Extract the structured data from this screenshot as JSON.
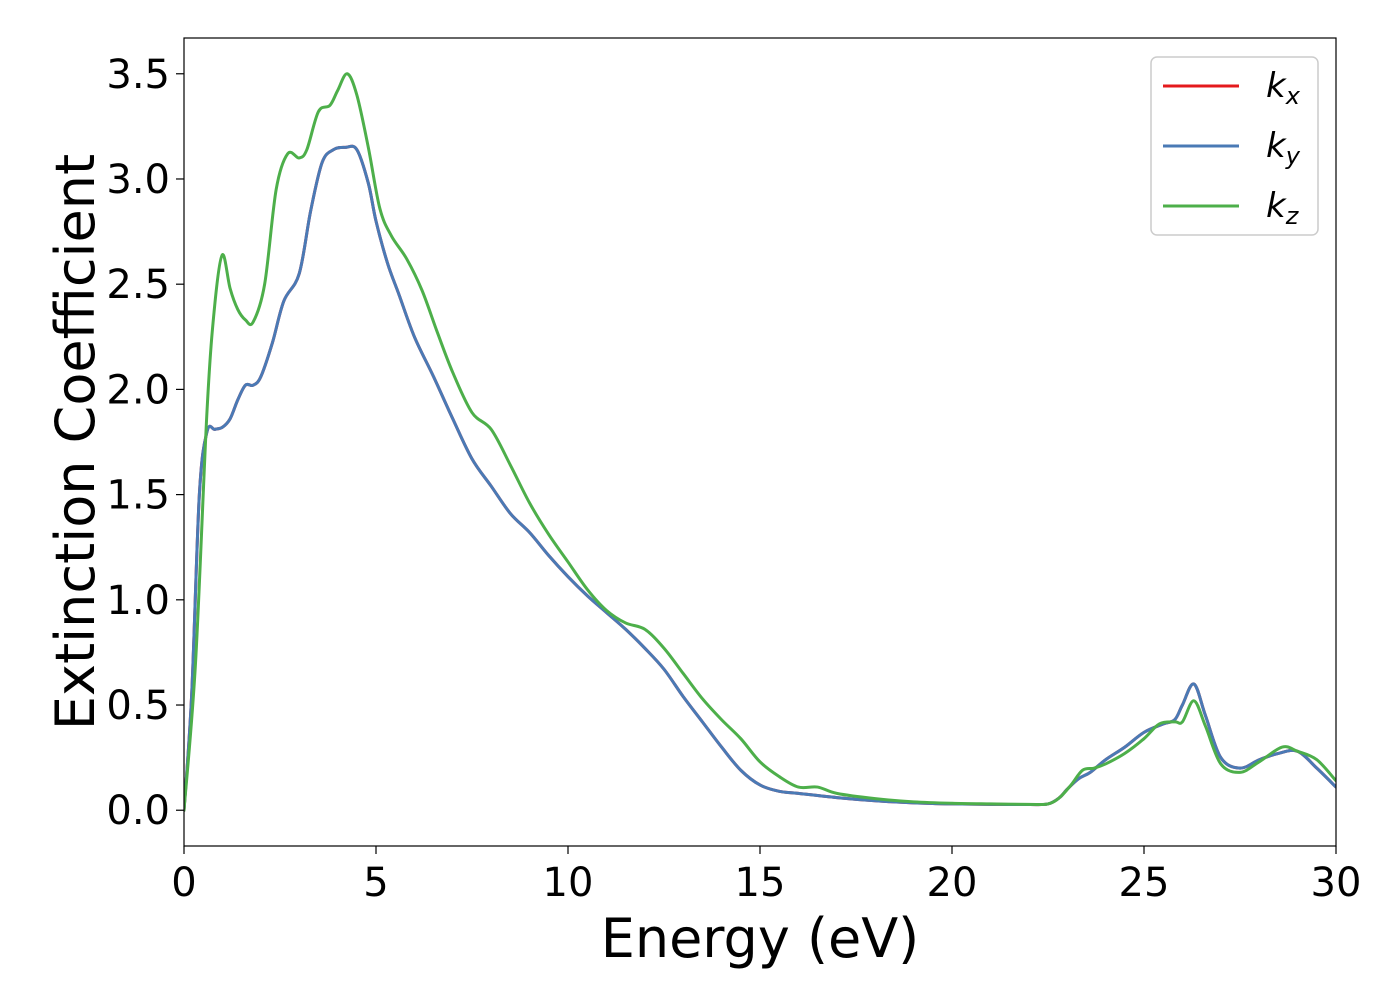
{
  "chart_data": {
    "type": "line",
    "xlabel": "Energy (eV)",
    "ylabel": "Extinction Coefficient",
    "xlim": [
      0,
      30
    ],
    "ylim": [
      -0.17,
      3.67
    ],
    "xticks": [
      0,
      5,
      10,
      15,
      20,
      25,
      30
    ],
    "xtick_labels": [
      "0",
      "5",
      "10",
      "15",
      "20",
      "25",
      "30"
    ],
    "yticks": [
      0.0,
      0.5,
      1.0,
      1.5,
      2.0,
      2.5,
      3.0,
      3.5
    ],
    "ytick_labels": [
      "0.0",
      "0.5",
      "1.0",
      "1.5",
      "2.0",
      "2.5",
      "3.0",
      "3.5"
    ],
    "grid": false,
    "legend_position": "top-right",
    "series": [
      {
        "name": "k_x",
        "label_base": "k",
        "label_sub": "x",
        "color": "#e41a1c",
        "x": [
          0,
          0.2,
          0.4,
          0.6,
          0.8,
          1.0,
          1.2,
          1.4,
          1.6,
          1.8,
          2.0,
          2.3,
          2.6,
          3.0,
          3.3,
          3.6,
          3.9,
          4.2,
          4.5,
          4.8,
          5.0,
          5.3,
          5.6,
          6.0,
          6.5,
          7.0,
          7.5,
          8.0,
          8.5,
          9.0,
          9.5,
          10.0,
          10.5,
          11.0,
          11.5,
          12.0,
          12.5,
          13.0,
          13.5,
          14.0,
          14.5,
          15.0,
          15.5,
          16.0,
          17.0,
          18.0,
          19.0,
          20.0,
          21.0,
          22.0,
          22.5,
          22.8,
          23.0,
          23.3,
          23.6,
          24.0,
          24.5,
          25.0,
          25.5,
          25.8,
          26.0,
          26.3,
          26.6,
          27.0,
          27.5,
          28.0,
          28.5,
          29.0,
          29.5,
          30.0
        ],
        "y": [
          0.0,
          0.55,
          1.5,
          1.8,
          1.81,
          1.82,
          1.86,
          1.95,
          2.02,
          2.02,
          2.06,
          2.22,
          2.42,
          2.55,
          2.85,
          3.08,
          3.14,
          3.15,
          3.14,
          2.98,
          2.8,
          2.6,
          2.45,
          2.25,
          2.06,
          1.86,
          1.67,
          1.54,
          1.41,
          1.32,
          1.21,
          1.11,
          1.02,
          0.94,
          0.86,
          0.77,
          0.67,
          0.54,
          0.42,
          0.3,
          0.19,
          0.12,
          0.09,
          0.08,
          0.06,
          0.045,
          0.035,
          0.03,
          0.028,
          0.027,
          0.03,
          0.06,
          0.1,
          0.15,
          0.18,
          0.24,
          0.3,
          0.37,
          0.41,
          0.43,
          0.5,
          0.6,
          0.45,
          0.25,
          0.2,
          0.24,
          0.27,
          0.28,
          0.2,
          0.11
        ]
      },
      {
        "name": "k_y",
        "label_base": "k",
        "label_sub": "y",
        "color": "#4a7ab5",
        "x": [
          0,
          0.2,
          0.4,
          0.6,
          0.8,
          1.0,
          1.2,
          1.4,
          1.6,
          1.8,
          2.0,
          2.3,
          2.6,
          3.0,
          3.3,
          3.6,
          3.9,
          4.2,
          4.5,
          4.8,
          5.0,
          5.3,
          5.6,
          6.0,
          6.5,
          7.0,
          7.5,
          8.0,
          8.5,
          9.0,
          9.5,
          10.0,
          10.5,
          11.0,
          11.5,
          12.0,
          12.5,
          13.0,
          13.5,
          14.0,
          14.5,
          15.0,
          15.5,
          16.0,
          17.0,
          18.0,
          19.0,
          20.0,
          21.0,
          22.0,
          22.5,
          22.8,
          23.0,
          23.3,
          23.6,
          24.0,
          24.5,
          25.0,
          25.5,
          25.8,
          26.0,
          26.3,
          26.6,
          27.0,
          27.5,
          28.0,
          28.5,
          29.0,
          29.5,
          30.0
        ],
        "y": [
          0.0,
          0.55,
          1.5,
          1.8,
          1.81,
          1.82,
          1.86,
          1.95,
          2.02,
          2.02,
          2.06,
          2.22,
          2.42,
          2.55,
          2.85,
          3.08,
          3.14,
          3.15,
          3.14,
          2.98,
          2.8,
          2.6,
          2.45,
          2.25,
          2.06,
          1.86,
          1.67,
          1.54,
          1.41,
          1.32,
          1.21,
          1.11,
          1.02,
          0.94,
          0.86,
          0.77,
          0.67,
          0.54,
          0.42,
          0.3,
          0.19,
          0.12,
          0.09,
          0.08,
          0.06,
          0.045,
          0.035,
          0.03,
          0.028,
          0.027,
          0.03,
          0.06,
          0.1,
          0.15,
          0.18,
          0.24,
          0.3,
          0.37,
          0.41,
          0.43,
          0.5,
          0.6,
          0.45,
          0.25,
          0.2,
          0.24,
          0.27,
          0.28,
          0.2,
          0.11
        ]
      },
      {
        "name": "k_z",
        "label_base": "k",
        "label_sub": "z",
        "color": "#4daf4a",
        "x": [
          0,
          0.3,
          0.6,
          0.8,
          1.0,
          1.2,
          1.4,
          1.6,
          1.8,
          2.1,
          2.4,
          2.7,
          3.0,
          3.2,
          3.5,
          3.8,
          4.0,
          4.25,
          4.5,
          4.8,
          5.1,
          5.4,
          5.8,
          6.2,
          6.6,
          7.0,
          7.5,
          8.0,
          8.5,
          9.0,
          9.5,
          10.0,
          10.5,
          11.0,
          11.5,
          12.0,
          12.5,
          13.0,
          13.5,
          14.0,
          14.5,
          15.0,
          15.5,
          16.0,
          16.5,
          17.0,
          18.0,
          19.0,
          20.0,
          21.0,
          22.0,
          22.5,
          22.8,
          23.1,
          23.4,
          23.7,
          24.0,
          24.5,
          25.0,
          25.4,
          25.8,
          26.0,
          26.3,
          26.6,
          27.0,
          27.5,
          28.0,
          28.6,
          29.0,
          29.5,
          30.0
        ],
        "y": [
          0.0,
          0.7,
          1.9,
          2.4,
          2.64,
          2.48,
          2.38,
          2.33,
          2.32,
          2.5,
          2.95,
          3.12,
          3.1,
          3.14,
          3.32,
          3.35,
          3.42,
          3.5,
          3.4,
          3.15,
          2.86,
          2.73,
          2.62,
          2.47,
          2.27,
          2.08,
          1.89,
          1.81,
          1.64,
          1.46,
          1.31,
          1.18,
          1.05,
          0.95,
          0.89,
          0.86,
          0.77,
          0.65,
          0.53,
          0.43,
          0.34,
          0.23,
          0.16,
          0.11,
          0.11,
          0.08,
          0.055,
          0.04,
          0.033,
          0.03,
          0.028,
          0.03,
          0.06,
          0.12,
          0.19,
          0.2,
          0.22,
          0.27,
          0.34,
          0.41,
          0.42,
          0.42,
          0.52,
          0.4,
          0.22,
          0.18,
          0.23,
          0.3,
          0.28,
          0.24,
          0.14
        ]
      }
    ]
  }
}
